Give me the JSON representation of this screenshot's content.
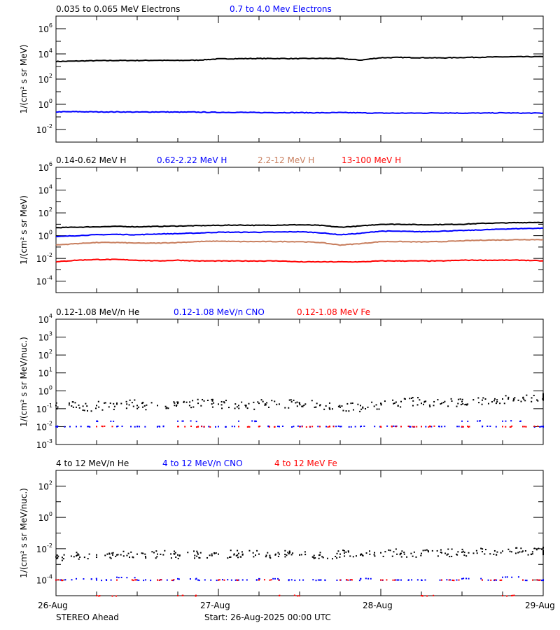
{
  "footer": {
    "spacecraft": "STEREO Ahead",
    "start": "Start: 26-Aug-2025 00:00 UTC"
  },
  "chart_data": [
    {
      "type": "line",
      "ylabel": "1/(cm² s sr MeV)",
      "yscale": "log",
      "ylim": [
        0.001,
        10000000
      ],
      "ytick_exponents": [
        -2,
        0,
        2,
        4,
        6
      ],
      "xlim": [
        "2025-08-26T00:00",
        "2025-08-29T00:00"
      ],
      "xtick_labels": [
        "26-Aug",
        "27-Aug",
        "28-Aug",
        "29-Aug"
      ],
      "x": [
        "26T00",
        "26T03",
        "26T06",
        "26T09",
        "26T12",
        "26T15",
        "26T18",
        "26T21",
        "27T00",
        "27T03",
        "27T06",
        "27T09",
        "27T12",
        "27T15",
        "27T18",
        "27T21",
        "28T00",
        "28T03",
        "28T06",
        "28T09",
        "28T12",
        "28T15",
        "28T18",
        "28T21",
        "29T00"
      ],
      "series": [
        {
          "name": "0.035 to 0.065 MeV Electrons",
          "color": "#000000",
          "values": [
            2500,
            2700,
            2900,
            3000,
            3000,
            3100,
            3000,
            3200,
            4000,
            4200,
            4300,
            4300,
            4200,
            4400,
            4300,
            3200,
            5000,
            5200,
            5000,
            4800,
            5200,
            5500,
            5800,
            6000,
            6000
          ]
        },
        {
          "name": "0.7 to 4.0 Mev Electrons",
          "color": "#0000ff",
          "values": [
            0.25,
            0.26,
            0.25,
            0.25,
            0.24,
            0.25,
            0.24,
            0.24,
            0.23,
            0.23,
            0.22,
            0.22,
            0.22,
            0.21,
            0.22,
            0.21,
            0.2,
            0.2,
            0.2,
            0.21,
            0.2,
            0.2,
            0.21,
            0.2,
            0.2
          ]
        }
      ]
    },
    {
      "type": "line",
      "ylabel": "1/(cm² s sr MeV)",
      "yscale": "log",
      "ylim": [
        1e-05,
        1000000
      ],
      "ytick_exponents": [
        -4,
        -2,
        0,
        2,
        4,
        6
      ],
      "xlim": [
        "2025-08-26T00:00",
        "2025-08-29T00:00"
      ],
      "series": [
        {
          "name": "0.14-0.62 MeV H",
          "color": "#000000",
          "values": [
            5,
            5.5,
            6,
            6.5,
            6,
            6.5,
            7,
            7.5,
            8,
            8.5,
            8,
            8.5,
            9,
            8,
            5.5,
            7,
            10,
            10,
            9,
            9.5,
            10,
            12,
            13,
            14,
            15
          ]
        },
        {
          "name": "0.62-2.22 MeV H",
          "color": "#0000ff",
          "values": [
            0.8,
            1,
            1.2,
            1.3,
            1.2,
            1.4,
            1.5,
            1.7,
            2,
            2,
            2,
            2.1,
            2.2,
            1.8,
            1.2,
            1.6,
            2.5,
            2.4,
            2.2,
            2.5,
            2.8,
            3.2,
            3.8,
            4.2,
            4.5
          ]
        },
        {
          "name": "2.2-12 MeV H",
          "color": "#c87f5f",
          "values": [
            0.15,
            0.2,
            0.25,
            0.25,
            0.22,
            0.22,
            0.25,
            0.3,
            0.33,
            0.3,
            0.3,
            0.3,
            0.3,
            0.25,
            0.15,
            0.2,
            0.3,
            0.3,
            0.28,
            0.3,
            0.35,
            0.4,
            0.42,
            0.45,
            0.45
          ]
        },
        {
          "name": "13-100 MeV H",
          "color": "#ff0000",
          "values": [
            0.005,
            0.007,
            0.008,
            0.008,
            0.007,
            0.006,
            0.007,
            0.006,
            0.006,
            0.006,
            0.006,
            0.006,
            0.005,
            0.005,
            0.005,
            0.005,
            0.006,
            0.006,
            0.006,
            0.006,
            0.007,
            0.007,
            0.007,
            0.007,
            0.006
          ]
        }
      ]
    },
    {
      "type": "scatter",
      "ylabel": "1/(cm² s sr MeV/nuc.)",
      "yscale": "log",
      "ylim": [
        0.001,
        10000
      ],
      "ytick_exponents": [
        -3,
        -2,
        -1,
        0,
        1,
        2,
        3,
        4
      ],
      "xlim": [
        "2025-08-26T00:00",
        "2025-08-29T00:00"
      ],
      "series": [
        {
          "name": "0.12-1.08 MeV/n He",
          "color": "#000000",
          "values": [
            0.15,
            0.12,
            0.15,
            0.18,
            0.15,
            0.15,
            0.2,
            0.2,
            0.18,
            0.15,
            0.2,
            0.18,
            0.2,
            0.15,
            0.12,
            0.15,
            0.2,
            0.25,
            0.2,
            0.2,
            0.25,
            0.3,
            0.35,
            0.4,
            0.4
          ]
        },
        {
          "name": "0.12-1.08 MeV/n CNO",
          "color": "#0000ff",
          "values": [
            0.01,
            0.01,
            0.02,
            0.01,
            0.01,
            0.01,
            0.02,
            0.01,
            0.01,
            0.02,
            0.01,
            0.01,
            0.01,
            0.01,
            0.01,
            0.01,
            0.01,
            0.01,
            0.01,
            0.01,
            0.02,
            0.01,
            0.02,
            0.01,
            0.01
          ]
        },
        {
          "name": "0.12-1.08 MeV Fe",
          "color": "#ff0000",
          "values": [
            null,
            null,
            0.01,
            null,
            null,
            null,
            0.01,
            0.01,
            null,
            0.01,
            0.01,
            null,
            0.01,
            0.01,
            null,
            null,
            0.01,
            0.01,
            0.01,
            null,
            0.01,
            null,
            0.01,
            0.01,
            null
          ]
        }
      ]
    },
    {
      "type": "scatter",
      "ylabel": "1/(cm² s sr MeV/nuc.)",
      "yscale": "log",
      "ylim": [
        1e-05,
        1000
      ],
      "ytick_exponents": [
        -4,
        -2,
        0,
        2
      ],
      "xlim": [
        "2025-08-26T00:00",
        "2025-08-29T00:00"
      ],
      "series": [
        {
          "name": "4 to 12 MeV/n He",
          "color": "#000000",
          "values": [
            0.003,
            0.0035,
            0.004,
            0.004,
            0.0045,
            0.0045,
            0.004,
            0.0045,
            0.0045,
            0.005,
            0.0045,
            0.0045,
            0.004,
            0.004,
            0.0045,
            0.004,
            0.0055,
            0.005,
            0.005,
            0.0055,
            0.006,
            0.0065,
            0.007,
            0.007,
            0.007
          ]
        },
        {
          "name": "4 to 12 MeV/n CNO",
          "color": "#0000ff",
          "values": [
            0.0001,
            0.00012,
            0.0001,
            0.00015,
            0.0001,
            0.0001,
            0.00012,
            0.0001,
            0.0001,
            0.0001,
            0.00012,
            0.0001,
            0.0001,
            0.0001,
            0.0001,
            0.00012,
            0.0001,
            0.0001,
            0.0001,
            0.0001,
            0.00012,
            0.0001,
            0.00015,
            0.0001,
            0.0001
          ]
        },
        {
          "name": "4 to 12 MeV Fe",
          "color": "#ff0000",
          "values": [
            0.0001,
            null,
            1e-05,
            0.0001,
            null,
            0.0001,
            1e-05,
            null,
            0.0001,
            null,
            0.0001,
            1e-05,
            null,
            null,
            0.0001,
            null,
            0.0001,
            null,
            1e-05,
            0.0001,
            null,
            0.0001,
            1e-05,
            0.0001,
            null
          ]
        }
      ]
    }
  ]
}
